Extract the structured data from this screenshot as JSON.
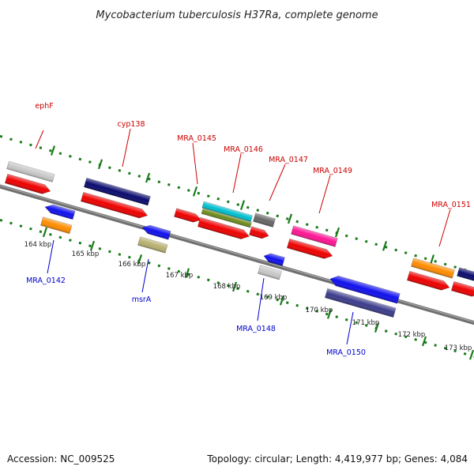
{
  "title": "Mycobacterium tuberculosis H37Ra, complete genome",
  "footer": {
    "accession": "Accession: NC_009525",
    "summary": "Topology: circular; Length: 4,419,977 bp; Genes: 4,084"
  },
  "colors": {
    "label_above": "#cc0000",
    "label_below": "#0000cc",
    "tick": "#1a7a1a",
    "backbone": "#808080"
  },
  "scale": {
    "tick_labels": [
      "164 kbp",
      "165 kbp",
      "166 kbp",
      "167 kbp",
      "168 kbp",
      "169 kbp",
      "170 kbp",
      "171 kbp",
      "172 kbp",
      "173 kbp"
    ]
  },
  "labels_above": [
    "ephF",
    "cyp138",
    "MRA_0145",
    "MRA_0146",
    "MRA_0147",
    "MRA_0149",
    "MRA_0151"
  ],
  "labels_below": [
    "MRA_0142",
    "msrA",
    "MRA_0148",
    "MRA_0150"
  ]
}
